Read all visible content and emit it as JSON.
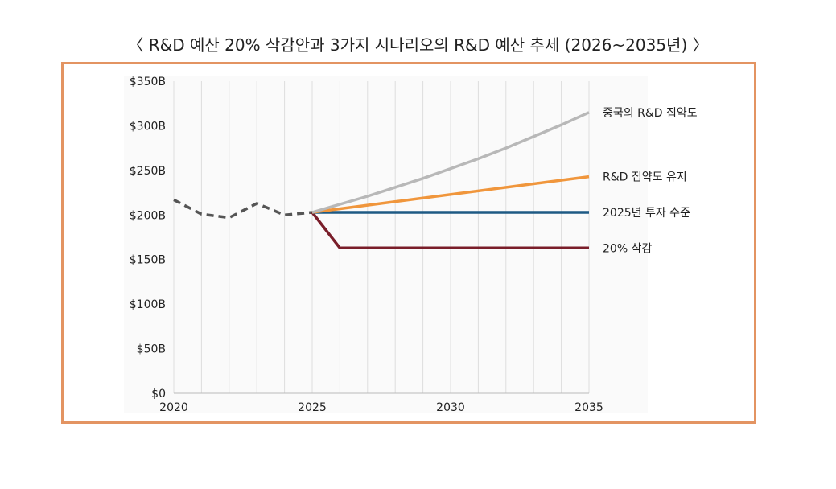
{
  "colors": {
    "frame": "#e39462",
    "china": "#b8b8b8",
    "maintain": "#f0963c",
    "level2025": "#1e5a84",
    "cut20": "#7a1e2a",
    "historical": "#555555",
    "gridline": "#dddddd",
    "axis": "#bbbbbb"
  },
  "chart_data": {
    "type": "line",
    "title": "〈 R&D 예산 20% 삭감안과 3가지 시나리오의 R&D 예산 추세 (2026~2035년) 〉",
    "xlabel": "",
    "ylabel": "",
    "xlim": [
      2020,
      2035
    ],
    "ylim": [
      0,
      350
    ],
    "x_ticks": [
      "2020",
      "2025",
      "2030",
      "2035"
    ],
    "x_tick_values": [
      2020,
      2025,
      2030,
      2035
    ],
    "y_ticks": [
      "$0",
      "$50B",
      "$100B",
      "$150B",
      "$200B",
      "$250B",
      "$300B",
      "$350B"
    ],
    "y_tick_values": [
      0,
      50,
      100,
      150,
      200,
      250,
      300,
      350
    ],
    "grid": {
      "vertical": true,
      "horizontal": false
    },
    "legend_position": "right-inline",
    "series": [
      {
        "name": "historical",
        "label": "",
        "style": "dashed",
        "color_key": "historical",
        "x": [
          2020,
          2021,
          2022,
          2023,
          2024,
          2025
        ],
        "y": [
          217,
          201,
          197,
          213,
          200,
          203
        ]
      },
      {
        "name": "china-intensity",
        "label": "중국의 R&D 집약도",
        "style": "solid",
        "color_key": "china",
        "x": [
          2025,
          2026,
          2027,
          2028,
          2029,
          2030,
          2031,
          2032,
          2033,
          2034,
          2035
        ],
        "y": [
          203,
          212,
          221,
          231,
          241,
          252,
          263,
          275,
          288,
          301,
          315
        ]
      },
      {
        "name": "maintain-intensity",
        "label": "R&D 집약도 유지",
        "style": "solid",
        "color_key": "maintain",
        "x": [
          2025,
          2035
        ],
        "y": [
          203,
          243
        ]
      },
      {
        "name": "level-2025",
        "label": "2025년 투자 수준",
        "style": "solid",
        "color_key": "level2025",
        "x": [
          2025,
          2035
        ],
        "y": [
          203,
          203
        ]
      },
      {
        "name": "cut-20",
        "label": "20% 삭감",
        "style": "solid",
        "color_key": "cut20",
        "x": [
          2025,
          2026,
          2035
        ],
        "y": [
          203,
          163,
          163
        ]
      }
    ]
  }
}
